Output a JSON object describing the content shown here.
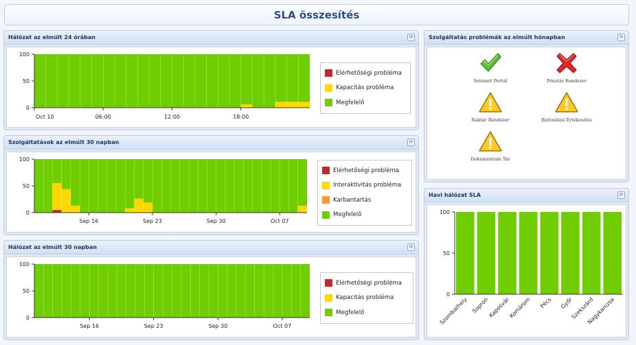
{
  "page": {
    "title": "SLA összesítés"
  },
  "colors": {
    "green": "#6fcd00",
    "yellow": "#ffd800",
    "red": "#c0282b",
    "orange": "#ff9a2e"
  },
  "panels": {
    "network24h": {
      "title": "Hálózat az elmúlt 24 órában",
      "legend": [
        "Elérhetőségi probléma",
        "Kapacitás probléma",
        "Megfelelő"
      ]
    },
    "services30d": {
      "title": "Szolgáltatások az elmúlt 30 napban",
      "legend": [
        "Elérhetőségi probléma",
        "Interaktivitás probléma",
        "Karbantartás",
        "Megfelelő"
      ]
    },
    "network30d": {
      "title": "Hálózat az elmúlt 30 napban",
      "legend": [
        "Elérhetőségi probléma",
        "Kapacitás probléma",
        "Megfelelő"
      ]
    },
    "serviceProblems": {
      "title": "Szolgáltatás problémák az elmúlt hónapban",
      "items": [
        {
          "label": "Intranet Portál",
          "icon": "check-icon"
        },
        {
          "label": "Pénztár Rendszer",
          "icon": "error-x-icon"
        },
        {
          "label": "Raktár Rendszer",
          "icon": "warning-icon"
        },
        {
          "label": "Biztosítási Értékesítés",
          "icon": "warning-icon"
        },
        {
          "label": "Dokumentum Tár",
          "icon": "warning-icon"
        }
      ]
    },
    "monthlySla": {
      "title": "Havi hálózat SLA"
    }
  },
  "chart_data": [
    {
      "type": "bar",
      "stacked": true,
      "ylim": [
        0,
        100
      ],
      "yticks": [
        0,
        50,
        100
      ],
      "xticklabels": [
        "Oct 10",
        "06:00",
        "12:00",
        "18:00"
      ],
      "legend_position": "right",
      "grid": false,
      "bar_count": 24,
      "series": [
        {
          "name": "Elérhetőségi probléma",
          "color": "#c0282b",
          "values": [
            0,
            0,
            0,
            0,
            0,
            0,
            0,
            0,
            0,
            0,
            0,
            0,
            0,
            0,
            0,
            0,
            0,
            0,
            0,
            0,
            0,
            0,
            0,
            0
          ]
        },
        {
          "name": "Kapacitás probléma",
          "color": "#ffd800",
          "values": [
            0,
            0,
            0,
            0,
            0,
            0,
            0,
            0,
            0,
            0,
            0,
            0,
            0,
            0,
            0,
            0,
            0,
            0,
            6,
            0,
            0,
            11,
            11,
            11
          ]
        },
        {
          "name": "Megfelelő",
          "color": "#6fcd00",
          "values": [
            100,
            100,
            100,
            100,
            100,
            100,
            100,
            100,
            100,
            100,
            100,
            100,
            100,
            100,
            100,
            100,
            100,
            100,
            94,
            100,
            100,
            89,
            89,
            89
          ]
        }
      ]
    },
    {
      "type": "bar",
      "stacked": true,
      "ylim": [
        0,
        100
      ],
      "yticks": [
        0,
        50,
        100
      ],
      "xticklabels": [
        "Sep 16",
        "Sep 23",
        "Sep 30",
        "Oct 07"
      ],
      "legend_position": "right",
      "grid": false,
      "bar_count": 30,
      "series": [
        {
          "name": "Elérhetőségi probléma",
          "color": "#c0282b",
          "values": [
            0,
            0,
            5,
            0,
            0,
            0,
            0,
            0,
            0,
            0,
            0,
            0,
            0,
            0,
            0,
            0,
            0,
            0,
            0,
            0,
            0,
            0,
            0,
            0,
            0,
            0,
            0,
            0,
            0,
            0
          ]
        },
        {
          "name": "Interaktivitás probléma",
          "color": "#ffd800",
          "values": [
            0,
            0,
            50,
            44,
            13,
            0,
            0,
            0,
            0,
            0,
            8,
            26,
            19,
            0,
            0,
            0,
            0,
            0,
            0,
            0,
            0,
            0,
            0,
            0,
            0,
            0,
            0,
            0,
            0,
            13
          ]
        },
        {
          "name": "Karbantartás",
          "color": "#ff9a2e",
          "values": [
            0,
            0,
            0,
            0,
            0,
            0,
            0,
            0,
            0,
            0,
            0,
            0,
            0,
            0,
            0,
            0,
            0,
            0,
            0,
            0,
            0,
            0,
            0,
            0,
            0,
            0,
            0,
            0,
            0,
            0
          ]
        },
        {
          "name": "Megfelelő",
          "color": "#6fcd00",
          "values": [
            100,
            100,
            45,
            56,
            87,
            100,
            100,
            100,
            100,
            100,
            92,
            74,
            81,
            100,
            100,
            100,
            100,
            100,
            100,
            100,
            100,
            100,
            100,
            100,
            100,
            100,
            100,
            100,
            100,
            87
          ]
        }
      ]
    },
    {
      "type": "bar",
      "stacked": true,
      "ylim": [
        0,
        100
      ],
      "yticks": [
        0,
        50,
        100
      ],
      "xticklabels": [
        "Sep 16",
        "Sep 23",
        "Sep 30",
        "Oct 07"
      ],
      "legend_position": "right",
      "grid": false,
      "bar_count": 30,
      "series": [
        {
          "name": "Elérhetőségi probléma",
          "color": "#c0282b",
          "values": [
            0,
            0,
            0,
            0,
            0,
            0,
            0,
            0,
            0,
            0,
            0,
            0,
            0,
            0,
            0,
            0,
            0,
            0,
            0,
            0,
            0,
            0,
            0,
            0,
            0,
            0,
            0,
            0,
            0,
            0
          ]
        },
        {
          "name": "Kapacitás probléma",
          "color": "#ffd800",
          "values": [
            0,
            0,
            0,
            0,
            0,
            0,
            0,
            0,
            0,
            0,
            0,
            0,
            0,
            0,
            0,
            0,
            0,
            0,
            0,
            0,
            0,
            0,
            0,
            0,
            0,
            0,
            0,
            0,
            0,
            0
          ]
        },
        {
          "name": "Megfelelő",
          "color": "#6fcd00",
          "values": [
            100,
            100,
            100,
            100,
            100,
            100,
            100,
            100,
            100,
            100,
            100,
            100,
            100,
            100,
            100,
            100,
            100,
            100,
            100,
            100,
            100,
            100,
            100,
            100,
            100,
            100,
            100,
            100,
            100,
            100
          ]
        }
      ]
    },
    {
      "type": "bar",
      "ylim": [
        0,
        100
      ],
      "yticks": [
        0,
        50,
        100
      ],
      "grid": false,
      "categories": [
        "Szombathely",
        "Sopron",
        "Kaposvár",
        "Komárom",
        "Pécs",
        "Győr",
        "Szekszárd",
        "Nagykanizsa"
      ],
      "values": [
        100,
        100,
        100,
        100,
        100,
        100,
        100,
        100
      ],
      "color": "#6fcd00"
    }
  ]
}
